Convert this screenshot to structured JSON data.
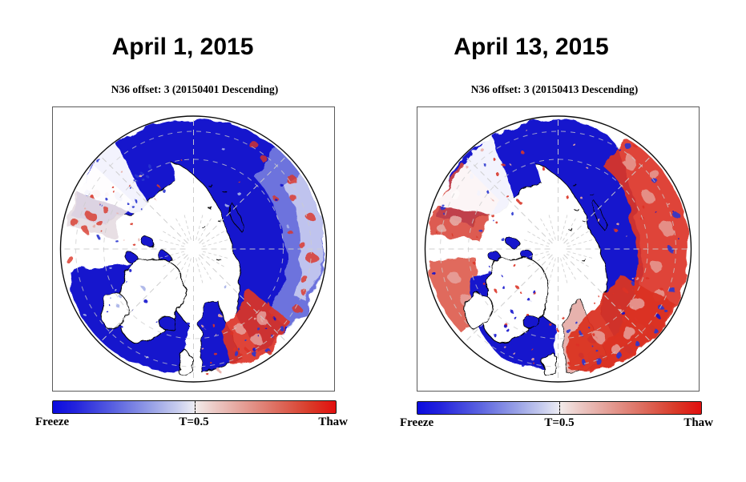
{
  "figure": {
    "background": "#ffffff",
    "legend_semantics": {
      "freeze_color": "#1414cd",
      "thaw_color": "#dd2211",
      "threshold": "T=0.5"
    },
    "panels": [
      {
        "title": "April 1, 2015",
        "subtitle": "N36 offset: 3 (20150401 Descending)",
        "colorbar": {
          "left_label": "Freeze",
          "center_label": "T=0.5",
          "right_label": "Thaw"
        }
      },
      {
        "title": "April 13, 2015",
        "subtitle": "N36 offset: 3 (20150413 Descending)",
        "colorbar": {
          "left_label": "Freeze",
          "center_label": "T=0.5",
          "right_label": "Thaw"
        }
      }
    ]
  }
}
